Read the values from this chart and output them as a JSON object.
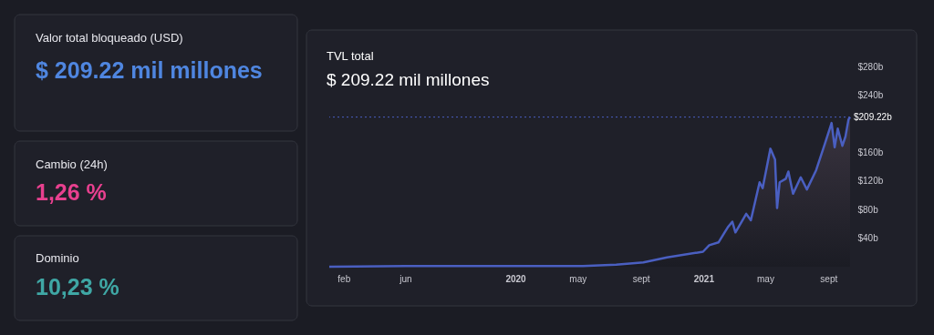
{
  "chart_data": {
    "type": "area",
    "title": "TVL total",
    "subtitle": "$ 209.22 mil millones",
    "annotations": [
      "Valor total bloqueado (USD)",
      "$ 209.22 mil millones",
      "Cambio (24h)",
      "1,26 %",
      "Dominio",
      "10,23 %"
    ],
    "x": [
      "2019-01-04",
      "2019-06-01",
      "2019-10-01",
      "2020-01-01",
      "2020-03-15",
      "2020-05-11",
      "2020-07-15",
      "2020-09-06",
      "2020-10-22",
      "2020-12-31",
      "2021-01-12",
      "2021-01-30",
      "2021-02-17",
      "2021-02-26",
      "2021-03-04",
      "2021-03-25",
      "2021-04-03",
      "2021-04-20",
      "2021-04-26",
      "2021-05-11",
      "2021-05-20",
      "2021-05-24",
      "2021-05-29",
      "2021-06-10",
      "2021-06-15",
      "2021-06-24",
      "2021-07-09",
      "2021-07-21",
      "2021-08-08",
      "2021-08-25",
      "2021-09-07",
      "2021-09-13",
      "2021-09-19",
      "2021-09-28",
      "2021-10-04",
      "2021-10-10",
      "2021-10-13"
    ],
    "series": [
      {
        "color": "#4a5fc1",
        "values": [
          0,
          1,
          1,
          1,
          1,
          1,
          3,
          6,
          13,
          21,
          30,
          34,
          55,
          63,
          48,
          74,
          65,
          118,
          110,
          165,
          150,
          82,
          118,
          123,
          133,
          102,
          125,
          108,
          135,
          172,
          201,
          167,
          193,
          169,
          182,
          206,
          209.22
        ]
      }
    ],
    "xlim": [
      "2019-01-04",
      "2021-10-13"
    ],
    "xticks": [
      {
        "value": "2019-02-01",
        "label": "feb"
      },
      {
        "value": "2019-06-01",
        "label": "jun"
      },
      {
        "value": "2020-01-01",
        "label": "2020"
      },
      {
        "value": "2020-05-01",
        "label": "may"
      },
      {
        "value": "2020-09-01",
        "label": "sept"
      },
      {
        "value": "2021-01-01",
        "label": "2021"
      },
      {
        "value": "2021-05-01",
        "label": "may"
      },
      {
        "value": "2021-09-01",
        "label": "sept"
      }
    ],
    "ylim": [
      0,
      280
    ],
    "yticks": [
      {
        "value": 40,
        "label": "$40b"
      },
      {
        "value": 80,
        "label": "$80b"
      },
      {
        "value": 120,
        "label": "$120b"
      },
      {
        "value": 160,
        "label": "$160b"
      },
      {
        "value": 240,
        "label": "$240b"
      },
      {
        "value": 280,
        "label": "$280b"
      }
    ],
    "ref_lines": [
      {
        "axis": "y",
        "value": 209.22,
        "label": "$209.22b",
        "color": "#4a5fc1",
        "line_style": "dotted"
      }
    ],
    "grid": false,
    "legend": false
  }
}
